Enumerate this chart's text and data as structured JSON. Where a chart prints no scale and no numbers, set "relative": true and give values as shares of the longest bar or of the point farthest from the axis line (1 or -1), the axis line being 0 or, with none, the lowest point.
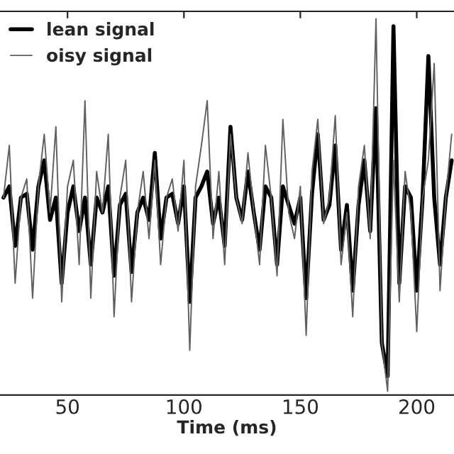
{
  "chart_data": {
    "type": "line",
    "xlabel": "Time (ms)",
    "relative": true,
    "xlim": [
      21,
      216
    ],
    "xticks": [
      50,
      100,
      150,
      200
    ],
    "legend": "top left",
    "grid": false,
    "x": [
      22.5,
      25,
      27.5,
      30,
      32.5,
      35,
      37.5,
      40,
      42.5,
      45,
      47.5,
      50,
      52.5,
      55,
      57.5,
      60,
      62.5,
      65,
      67.5,
      70,
      72.5,
      75,
      77.5,
      80,
      82.5,
      85,
      87.5,
      90,
      92.5,
      95,
      97.5,
      100,
      102.5,
      105,
      107.5,
      110,
      112.5,
      115,
      117.5,
      120,
      122.5,
      125,
      127.5,
      130,
      132.5,
      135,
      137.5,
      140,
      142.5,
      145,
      147.5,
      150,
      152.5,
      155,
      157.5,
      160,
      162.5,
      165,
      167.5,
      170,
      172.5,
      175,
      177.5,
      180,
      182.5,
      185,
      187.5,
      190,
      192.5,
      195,
      197.5,
      200,
      202.5,
      205,
      207.5,
      210,
      212.5,
      215
    ],
    "series": [
      {
        "name": "lean signal",
        "color": "#000000",
        "values": [
          0.52,
          0.55,
          0.39,
          0.52,
          0.53,
          0.38,
          0.55,
          0.62,
          0.46,
          0.52,
          0.29,
          0.48,
          0.55,
          0.43,
          0.52,
          0.34,
          0.52,
          0.48,
          0.55,
          0.31,
          0.5,
          0.53,
          0.32,
          0.48,
          0.52,
          0.46,
          0.64,
          0.41,
          0.52,
          0.53,
          0.45,
          0.55,
          0.24,
          0.52,
          0.55,
          0.59,
          0.45,
          0.52,
          0.39,
          0.71,
          0.52,
          0.46,
          0.59,
          0.48,
          0.38,
          0.55,
          0.52,
          0.34,
          0.55,
          0.5,
          0.45,
          0.52,
          0.25,
          0.53,
          0.69,
          0.46,
          0.5,
          0.66,
          0.38,
          0.5,
          0.27,
          0.5,
          0.62,
          0.43,
          0.76,
          0.13,
          0.04,
          0.98,
          0.29,
          0.55,
          0.52,
          0.27,
          0.52,
          0.9,
          0.52,
          0.34,
          0.52,
          0.62
        ]
      },
      {
        "name": "oisy signal",
        "color": "#606060",
        "values": [
          0.52,
          0.66,
          0.29,
          0.52,
          0.57,
          0.25,
          0.55,
          0.69,
          0.48,
          0.71,
          0.24,
          0.55,
          0.62,
          0.34,
          0.78,
          0.25,
          0.59,
          0.48,
          0.69,
          0.2,
          0.52,
          0.62,
          0.24,
          0.48,
          0.59,
          0.41,
          0.62,
          0.34,
          0.52,
          0.57,
          0.43,
          0.62,
          0.11,
          0.55,
          0.66,
          0.78,
          0.41,
          0.59,
          0.34,
          0.69,
          0.52,
          0.45,
          0.64,
          0.48,
          0.34,
          0.66,
          0.52,
          0.31,
          0.73,
          0.48,
          0.41,
          0.55,
          0.15,
          0.59,
          0.73,
          0.45,
          0.52,
          0.74,
          0.34,
          0.48,
          0.2,
          0.55,
          0.66,
          0.41,
          1,
          0.13,
          0,
          0.62,
          0.24,
          0.59,
          0.48,
          0.16,
          0.52,
          0.62,
          0.88,
          0.27,
          0.52,
          0.69
        ]
      }
    ]
  }
}
